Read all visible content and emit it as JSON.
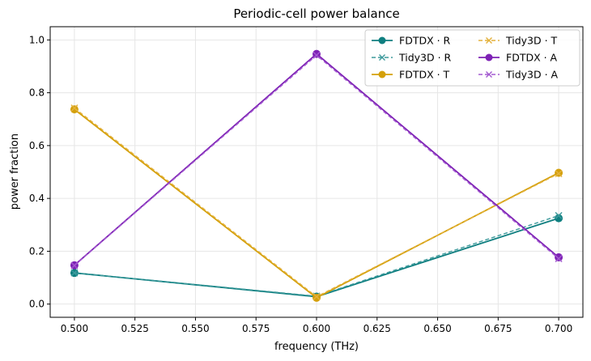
{
  "chart_data": {
    "type": "line",
    "title": "Periodic-cell power balance",
    "xlabel": "frequency (THz)",
    "ylabel": "power fraction",
    "x": [
      0.5,
      0.6,
      0.7
    ],
    "xlim": [
      0.49,
      0.71
    ],
    "ylim": [
      -0.05,
      1.05
    ],
    "xticks": [
      "0.500",
      "0.525",
      "0.550",
      "0.575",
      "0.600",
      "0.625",
      "0.650",
      "0.675",
      "0.700"
    ],
    "yticks": [
      "0.0",
      "0.2",
      "0.4",
      "0.6",
      "0.8",
      "1.0"
    ],
    "grid": true,
    "legend_position": "top-right",
    "series": [
      {
        "name": "FDTDX · R",
        "values": [
          0.118,
          0.028,
          0.325
        ],
        "color": "#0f7f80",
        "style": "solid",
        "marker": "circle"
      },
      {
        "name": "Tidy3D · R",
        "values": [
          0.118,
          0.03,
          0.335
        ],
        "color": "#3d9a9c",
        "style": "dashed",
        "marker": "x"
      },
      {
        "name": "FDTDX · T",
        "values": [
          0.737,
          0.024,
          0.497
        ],
        "color": "#d4a00a",
        "style": "solid",
        "marker": "circle"
      },
      {
        "name": "Tidy3D · T",
        "values": [
          0.742,
          0.028,
          0.494
        ],
        "color": "#e3b13c",
        "style": "dashed",
        "marker": "x"
      },
      {
        "name": "FDTDX · A",
        "values": [
          0.147,
          0.947,
          0.177
        ],
        "color": "#7e22b5",
        "style": "solid",
        "marker": "circle"
      },
      {
        "name": "Tidy3D · A",
        "values": [
          0.146,
          0.942,
          0.172
        ],
        "color": "#a35ad0",
        "style": "dashed",
        "marker": "x"
      }
    ]
  }
}
